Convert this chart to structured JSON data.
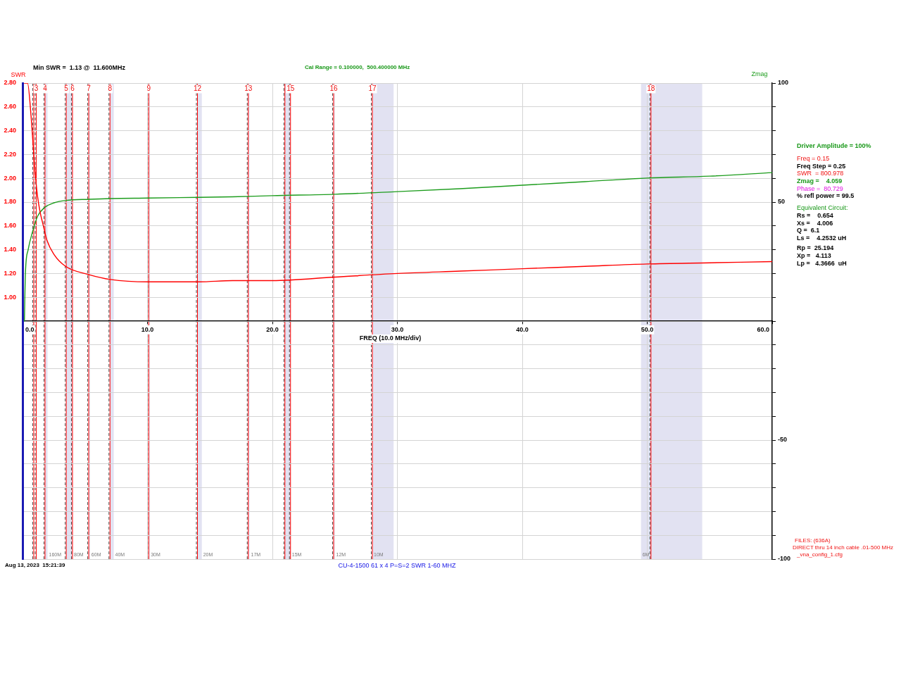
{
  "chart_data": {
    "type": "line",
    "title": "CU-4-1500 61 x 4 P=S=2 SWR 1-60 MHZ",
    "xlabel": "FREQ (10.0 MHz/div)",
    "ylabel": "SWR",
    "y2label": "Zmag",
    "xlim": [
      0,
      60
    ],
    "xticks": [
      {
        "value": 0,
        "label": "0.0"
      },
      {
        "value": 10,
        "label": "10.0"
      },
      {
        "value": 20,
        "label": "20.0"
      },
      {
        "value": 30,
        "label": "30.0"
      },
      {
        "value": 40,
        "label": "40.0"
      },
      {
        "value": 50,
        "label": "50.0"
      },
      {
        "value": 60,
        "label": "60.0"
      }
    ],
    "ylim": [
      -1.2,
      2.8
    ],
    "yticks": [
      {
        "value": 1,
        "label": "1.00"
      },
      {
        "value": 1.2,
        "label": "1.20"
      },
      {
        "value": 1.4,
        "label": "1.40"
      },
      {
        "value": 1.6,
        "label": "1.60"
      },
      {
        "value": 1.8,
        "label": "1.80"
      },
      {
        "value": 2,
        "label": "2.00"
      },
      {
        "value": 2.2,
        "label": "2.20"
      },
      {
        "value": 2.4,
        "label": "2.40"
      },
      {
        "value": 2.6,
        "label": "2.60"
      },
      {
        "value": 2.8,
        "label": "2.80"
      }
    ],
    "y2lim": [
      -100,
      100
    ],
    "y2ticks": [
      -100,
      {
        "value": -90,
        "label": null
      },
      {
        "value": -80,
        "label": null
      },
      {
        "value": -70,
        "label": null
      },
      {
        "value": -60,
        "label": null
      },
      -50,
      {
        "value": -40,
        "label": null
      },
      {
        "value": -30,
        "label": null
      },
      {
        "value": -20,
        "label": null
      },
      {
        "value": -10,
        "label": null
      },
      {
        "value": 0,
        "label": null
      },
      {
        "value": 10,
        "label": null
      },
      {
        "value": 20,
        "label": null
      },
      {
        "value": 30,
        "label": null
      },
      {
        "value": 40,
        "label": null
      },
      50,
      {
        "value": 60,
        "label": null
      },
      {
        "value": 70,
        "label": null
      },
      {
        "value": 80,
        "label": null
      },
      {
        "value": 90,
        "label": null
      },
      100
    ],
    "grid": true,
    "series": [
      {
        "color": "#ff0000",
        "x": [
          0.15,
          0.4,
          0.7,
          0.9,
          1.05,
          1.2,
          1.4,
          1.67,
          1.95,
          2.52,
          3.45,
          5.33,
          7.02,
          10.03,
          11.6,
          14.16,
          16.8,
          20,
          25,
          30,
          35,
          40,
          45,
          50,
          55,
          60
        ],
        "values": [
          2.8,
          2.8,
          2.5,
          2.2,
          2.0,
          1.85,
          1.72,
          1.6,
          1.48,
          1.36,
          1.26,
          1.19,
          1.15,
          1.13,
          1.13,
          1.13,
          1.14,
          1.14,
          1.17,
          1.2,
          1.22,
          1.24,
          1.26,
          1.28,
          1.29,
          1.3
        ]
      },
      {
        "color": "#1c9c1c",
        "axis": "y2",
        "x": [
          0.15,
          0.23,
          0.45,
          0.83,
          1.2,
          1.76,
          2.52,
          3.45,
          5.33,
          7.02,
          10.03,
          14.16,
          16.8,
          20,
          25,
          30,
          35,
          40,
          45,
          50,
          55,
          60
        ],
        "values": [
          0,
          20,
          30,
          38,
          44,
          47.7,
          49.7,
          50.7,
          51.2,
          51.5,
          51.7,
          52,
          52.2,
          52.7,
          53.3,
          54.4,
          55.6,
          57.1,
          58.6,
          60.1,
          60.9,
          62.4
        ]
      }
    ],
    "bands": [
      {
        "axis": "x",
        "from": 1.8,
        "to": 2.0,
        "label": "160M",
        "color": "#e2e2f2"
      },
      {
        "axis": "x",
        "from": 3.5,
        "to": 4.0,
        "label": "80M",
        "color": "#e2e2f2"
      },
      {
        "axis": "x",
        "from": 5.3,
        "to": 5.4,
        "label": "60M",
        "color": "#e2e2f2"
      },
      {
        "axis": "x",
        "from": 7.0,
        "to": 7.3,
        "label": "40M",
        "color": "#e2e2f2"
      },
      {
        "axis": "x",
        "from": 10.1,
        "to": 10.15,
        "label": "30M",
        "color": "#e2e2f2"
      },
      {
        "axis": "x",
        "from": 14.0,
        "to": 14.35,
        "label": "20M",
        "color": "#e2e2f2"
      },
      {
        "axis": "x",
        "from": 18.07,
        "to": 18.17,
        "label": "17M",
        "color": "#e2e2f2"
      },
      {
        "axis": "x",
        "from": 21.0,
        "to": 21.45,
        "label": "15M",
        "color": "#e2e2f2"
      },
      {
        "axis": "x",
        "from": 24.89,
        "to": 24.99,
        "label": "12M",
        "color": "#e2e2f2"
      },
      {
        "axis": "x",
        "from": 28.0,
        "to": 29.7,
        "label": "10M",
        "color": "#e2e2f2"
      },
      {
        "axis": "x",
        "from": 49.5,
        "to": 54.4,
        "label": "6M",
        "color": "#e2e2f2"
      }
    ],
    "ref_lines": [
      {
        "axis": "x",
        "value": 0.9,
        "color": "#ff0000"
      },
      {
        "axis": "x",
        "value": 1.1,
        "color": "#ff0000"
      },
      {
        "axis": "x",
        "value": 1.8,
        "color": "#ff0000"
      },
      {
        "axis": "x",
        "value": 3.5,
        "color": "#ff0000"
      },
      {
        "axis": "x",
        "value": 4.0,
        "color": "#ff0000"
      },
      {
        "axis": "x",
        "value": 5.3,
        "color": "#ff0000"
      },
      {
        "axis": "x",
        "value": 7.0,
        "color": "#ff0000"
      },
      {
        "axis": "x",
        "value": 10.1,
        "color": "#ff0000"
      },
      {
        "axis": "x",
        "value": 14.0,
        "color": "#ff0000"
      },
      {
        "axis": "x",
        "value": 18.07,
        "color": "#ff0000"
      },
      {
        "axis": "x",
        "value": 21.0,
        "color": "#ff0000"
      },
      {
        "axis": "x",
        "value": 21.45,
        "color": "#ff0000"
      },
      {
        "axis": "x",
        "value": 24.9,
        "color": "#ff0000"
      },
      {
        "axis": "x",
        "value": 28.0,
        "color": "#ff0000"
      },
      {
        "axis": "x",
        "value": 50.3,
        "color": "#ff0000"
      }
    ],
    "annotations": [
      "Min SWR =  1.13 @  11.600MHz",
      "Cal Range = 0.100000,  500.400000 MHz",
      "Driver Amplitude = 100%",
      "Freq = 0.15",
      "Freq Step = 0.25",
      "SWR  = 800.978",
      "Zmag =    4.059",
      "Phase =  80.729",
      "% refl power = 99.5",
      "Equivalent Circuit:",
      "Rs =    0.654",
      "Xs =    4.006",
      "Q =  6.1",
      "Ls =    4.2532 uH",
      "Rp =  25.194",
      "Xp =   4.113",
      "Lp =   4.3666  uH",
      "FILES: (636A)",
      "DIRECT thru 14 inch cable .01-500 MHz",
      "_vna_config_1.cfg",
      "Aug 13, 2023  15:21:39",
      {
        "text": "3",
        "x": 1.1,
        "y": 2.75
      },
      {
        "text": "4",
        "x": 1.8,
        "y": 2.75
      },
      {
        "text": "5",
        "x": 3.5,
        "y": 2.75
      },
      {
        "text": "6",
        "x": 4.0,
        "y": 2.75
      },
      {
        "text": "7",
        "x": 5.3,
        "y": 2.75
      },
      {
        "text": "8",
        "x": 7.0,
        "y": 2.75
      },
      {
        "text": "9",
        "x": 10.1,
        "y": 2.75
      },
      {
        "text": "12",
        "x": 14.0,
        "y": 2.75
      },
      {
        "text": "13",
        "x": 18.07,
        "y": 2.75
      },
      {
        "text": "15",
        "x": 21.45,
        "y": 2.75
      },
      {
        "text": "16",
        "x": 24.9,
        "y": 2.75
      },
      {
        "text": "17",
        "x": 28.0,
        "y": 2.75
      },
      {
        "text": "18",
        "x": 50.3,
        "y": 2.75
      }
    ]
  }
}
